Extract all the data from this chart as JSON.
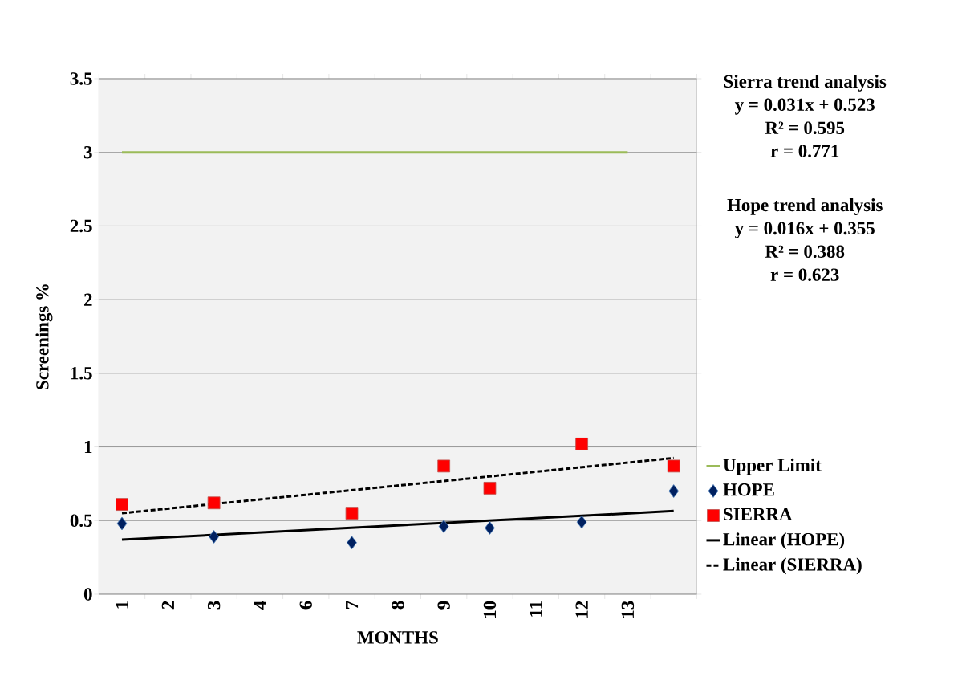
{
  "chart_data": {
    "type": "scatter",
    "xlabel": "MONTHS",
    "ylabel": "Screenings %",
    "categories": [
      "1",
      "2",
      "3",
      "4",
      "6",
      "7",
      "8",
      "9",
      "10",
      "11",
      "12",
      "13",
      null
    ],
    "ylim": [
      0,
      3.5
    ],
    "yticks": [
      0,
      0.5,
      1,
      1.5,
      2,
      2.5,
      3,
      3.5
    ],
    "grid": "y",
    "legend": "right",
    "series": [
      {
        "name": "Upper Limit",
        "type": "line",
        "color": "#9bbb59",
        "marker": "none",
        "line_style": "solid",
        "values": [
          3,
          3,
          3,
          3,
          3,
          3,
          3,
          3,
          3,
          3,
          3,
          3,
          null
        ]
      },
      {
        "name": "HOPE",
        "color": "#002060",
        "marker": "diamond",
        "values": [
          0.48,
          null,
          0.39,
          null,
          null,
          0.35,
          null,
          0.46,
          0.45,
          null,
          0.49,
          null,
          0.7
        ]
      },
      {
        "name": "SIERRA",
        "color": "#ff0000",
        "marker": "square",
        "values": [
          0.61,
          null,
          0.62,
          null,
          null,
          0.55,
          null,
          0.87,
          0.72,
          null,
          1.02,
          null,
          0.87
        ]
      },
      {
        "name": "Linear (HOPE)",
        "type": "line",
        "color": "#000000",
        "marker": "none",
        "line_style": "solid",
        "values": [
          0.37,
          null,
          null,
          null,
          null,
          null,
          null,
          null,
          null,
          null,
          null,
          null,
          0.565
        ]
      },
      {
        "name": "Linear (SIERRA)",
        "type": "line",
        "color": "#000000",
        "marker": "none",
        "line_style": "dashed",
        "values": [
          0.55,
          null,
          null,
          null,
          null,
          null,
          null,
          null,
          null,
          null,
          null,
          null,
          0.925
        ]
      }
    ],
    "annotations": [
      "Sierra trend analysis",
      "y = 0.031x + 0.523",
      "R² = 0.595",
      "r = 0.771",
      "Hope trend analysis",
      "y = 0.016x + 0.355",
      "R² = 0.388",
      "r = 0.623"
    ]
  }
}
